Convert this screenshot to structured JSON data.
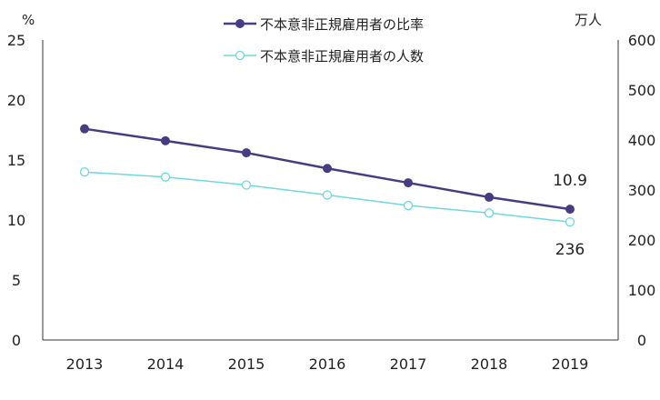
{
  "chart_data": {
    "type": "line",
    "categories": [
      "2013",
      "2014",
      "2015",
      "2016",
      "2017",
      "2018",
      "2019"
    ],
    "left_axis": {
      "unit": "%",
      "ylim": [
        0,
        25
      ],
      "ticks": [
        "0",
        "5",
        "10",
        "15",
        "20",
        "25"
      ]
    },
    "right_axis": {
      "unit": "万人",
      "ylim": [
        0,
        600
      ],
      "ticks": [
        "0",
        "100",
        "200",
        "300",
        "400",
        "500",
        "600"
      ]
    },
    "series": [
      {
        "name": "不本意非正規雇用者の比率",
        "axis": "left",
        "color": "#463c82",
        "marker": "filled-circle",
        "values": [
          17.6,
          16.6,
          15.6,
          14.3,
          13.1,
          11.9,
          10.9
        ]
      },
      {
        "name": "不本意非正規雇用者の人数",
        "axis": "right",
        "color": "#6ed8dc",
        "marker": "hollow-circle",
        "values": [
          336,
          326,
          310,
          290,
          269,
          254,
          236
        ]
      }
    ],
    "annotations": [
      "10.9",
      "236"
    ],
    "legend": "top-center",
    "grid": false
  }
}
